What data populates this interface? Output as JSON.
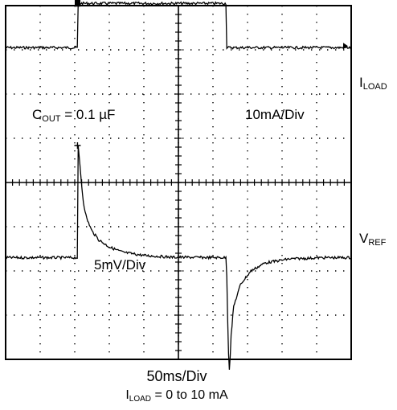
{
  "chart_data": {
    "type": "line",
    "title": "",
    "xlabel": "50ms/Div",
    "xlim": [
      0,
      500
    ],
    "x_unit": "ms",
    "grid": true,
    "divisions": {
      "x": 10,
      "y": 8
    },
    "series": [
      {
        "name": "ILOAD",
        "label_main": "I",
        "label_sub": "LOAD",
        "scale": "10mA/Div",
        "ylim_div": [
          -4,
          4
        ],
        "points": [
          [
            0,
            0
          ],
          [
            104,
            0
          ],
          [
            105,
            1.0
          ],
          [
            319,
            1.0
          ],
          [
            320,
            0
          ],
          [
            500,
            0
          ]
        ]
      },
      {
        "name": "VREF",
        "label_main": "V",
        "label_sub": "REF",
        "scale": "5mV/Div",
        "ylim_div": [
          -4,
          4
        ],
        "points": [
          [
            0,
            0
          ],
          [
            104,
            0
          ],
          [
            105,
            12.5
          ],
          [
            108,
            10.0
          ],
          [
            112,
            6.5
          ],
          [
            117,
            4.5
          ],
          [
            125,
            3.0
          ],
          [
            135,
            2.0
          ],
          [
            150,
            1.2
          ],
          [
            170,
            0.6
          ],
          [
            200,
            0.25
          ],
          [
            240,
            0.05
          ],
          [
            319,
            0
          ],
          [
            320,
            -2.0
          ],
          [
            322,
            -10.0
          ],
          [
            324,
            -13.0
          ],
          [
            326,
            -9.0
          ],
          [
            330,
            -5.5
          ],
          [
            340,
            -3.0
          ],
          [
            355,
            -1.5
          ],
          [
            375,
            -0.6
          ],
          [
            410,
            -0.15
          ],
          [
            460,
            0
          ],
          [
            500,
            0
          ]
        ]
      }
    ],
    "annotations": [
      {
        "main": "C",
        "sub": "OUT",
        "tail": " = 0.1 µF"
      }
    ],
    "caption": {
      "main": "I",
      "sub": "LOAD",
      "tail": " = 0 to 10 mA"
    }
  }
}
